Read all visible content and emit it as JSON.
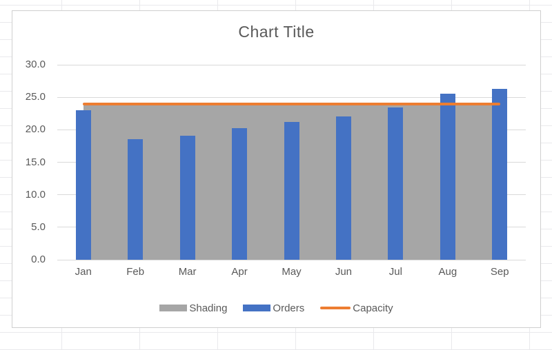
{
  "chart_data": {
    "type": "combo",
    "title": "Chart Title",
    "categories": [
      "Jan",
      "Feb",
      "Mar",
      "Apr",
      "May",
      "Jun",
      "Jul",
      "Aug",
      "Sep"
    ],
    "series": [
      {
        "name": "Shading",
        "type": "area",
        "color": "#A6A6A6",
        "values": [
          24,
          24,
          24,
          24,
          24,
          24,
          24,
          24,
          24
        ]
      },
      {
        "name": "Orders",
        "type": "bar",
        "color": "#4472C4",
        "values": [
          23,
          18.5,
          19.1,
          20.2,
          21.2,
          22.1,
          23.4,
          25.5,
          26.3
        ]
      },
      {
        "name": "Capacity",
        "type": "line",
        "color": "#ED7D31",
        "values": [
          24,
          24,
          24,
          24,
          24,
          24,
          24,
          24,
          24
        ]
      }
    ],
    "y_axis": {
      "min": 0,
      "max": 30,
      "step": 5,
      "tick_labels_top_to_bottom": [
        "30.0",
        "25.0",
        "20.0",
        "15.0",
        "10.0",
        "5.0",
        "0.0"
      ]
    },
    "legend_position": "bottom",
    "grid": true
  },
  "colors": {
    "background": "#FFFFFF",
    "sheet_gridline": "#E9E9EC",
    "chart_border": "#CFCFCF",
    "plot_gridline": "#D9D9D9",
    "text": "#595959"
  }
}
